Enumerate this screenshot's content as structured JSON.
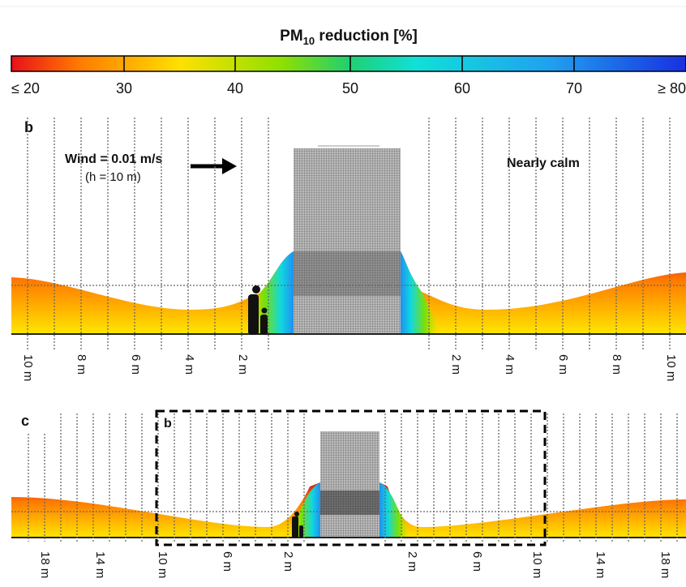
{
  "colorbar": {
    "title": {
      "main": "PM",
      "sub": "10",
      "rest": " reduction [%]"
    },
    "tick_labels": [
      "≤ 20",
      "30",
      "40",
      "50",
      "60",
      "70",
      "≥ 80"
    ]
  },
  "panel_b": {
    "label": "b",
    "wind": "Wind = 0.01 m/s",
    "height_note": "(h = 10 m)",
    "condition": "Nearly calm",
    "distance_labels": [
      "10 m",
      "8 m",
      "6 m",
      "4 m",
      "2 m",
      "2 m",
      "4 m",
      "6 m",
      "8 m",
      "10 m"
    ]
  },
  "panel_c": {
    "label": "c",
    "inset_label": "b",
    "distance_labels": [
      "18 m",
      "14 m",
      "10 m",
      "6 m",
      "2 m",
      "2 m",
      "6 m",
      "10 m",
      "14 m",
      "18 m"
    ]
  }
}
